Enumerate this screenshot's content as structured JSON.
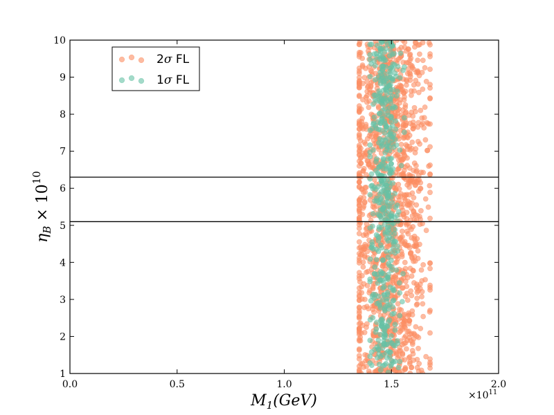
{
  "chart_data": {
    "type": "scatter",
    "xlabel": "M₁(GeV)",
    "xlabel_parts": {
      "main": "M",
      "sub": "1",
      "rest": "(GeV)"
    },
    "ylabel_parts": {
      "main": "η",
      "sub": "B",
      "times": " × 10",
      "sup": "10"
    },
    "x_multiplier_label": "×10",
    "x_multiplier_exp": "11",
    "xlim": [
      0.0,
      2.0
    ],
    "ylim": [
      1,
      10
    ],
    "x_scale_factor": 100000000000.0,
    "xticks": [
      0.0,
      0.5,
      1.0,
      1.5,
      2.0
    ],
    "xtick_labels": [
      "0.0",
      "0.5",
      "1.0",
      "1.5",
      "2.0"
    ],
    "yticks": [
      1,
      2,
      3,
      4,
      5,
      6,
      7,
      8,
      9,
      10
    ],
    "ytick_labels": [
      "1",
      "2",
      "3",
      "4",
      "5",
      "6",
      "7",
      "8",
      "9",
      "10"
    ],
    "hlines": [
      5.1,
      6.3
    ],
    "legend_placement": "top-left",
    "series": [
      {
        "name": "2σ FL",
        "name_parts": {
          "num": "2",
          "sigma": "σ",
          "rest": " FL"
        },
        "color": "#fc8d62",
        "x_center": 1.49,
        "x_spread": 0.095,
        "x_range": [
          1.35,
          1.68
        ],
        "y_range": [
          1,
          10
        ],
        "approx_count": 1400
      },
      {
        "name": "1σ FL",
        "name_parts": {
          "num": "1",
          "sigma": "σ",
          "rest": " FL"
        },
        "color": "#66c2a5",
        "x_center": 1.47,
        "x_spread": 0.035,
        "x_range": [
          1.4,
          1.56
        ],
        "y_range": [
          1,
          10
        ],
        "approx_count": 500
      }
    ]
  }
}
